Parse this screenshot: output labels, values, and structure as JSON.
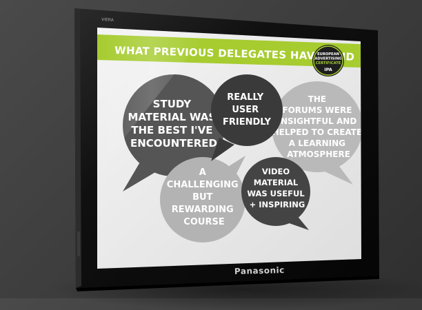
{
  "tv": {
    "brand": "Panasonic",
    "model": "VIERA"
  },
  "slide": {
    "heading": "WHAT PREVIOUS DELEGATES HAVE SAID",
    "logo": {
      "line1": "EUROPEAN",
      "line2": "ADVERTISING",
      "line3": "CERTIFICATE",
      "org": "IPA"
    },
    "quotes": [
      {
        "lines": [
          "STUDY",
          "MATERIAL WAS",
          "THE BEST I'VE",
          "ENCOUNTERED"
        ],
        "color": "#555555"
      },
      {
        "lines": [
          "REALLY",
          "USER",
          "FRIENDLY"
        ],
        "color": "#3a3a3a"
      },
      {
        "lines": [
          "THE",
          "FORUMS WERE",
          "INSIGHTFUL AND",
          "HELPED TO CREATE",
          "A LEARNING",
          "ATMOSPHERE"
        ],
        "color": "#b9b9b9"
      },
      {
        "lines": [
          "A",
          "CHALLENGING",
          "BUT",
          "REWARDING",
          "COURSE"
        ],
        "color": "#b3b3b3"
      },
      {
        "lines": [
          "VIDEO",
          "MATERIAL",
          "WAS USEFUL",
          "+ INSPIRING"
        ],
        "color": "#444444"
      }
    ],
    "colors": {
      "accent_green": "#a6cc2f",
      "screen_bg": "#ebebeb",
      "bezel": "#121212"
    }
  }
}
